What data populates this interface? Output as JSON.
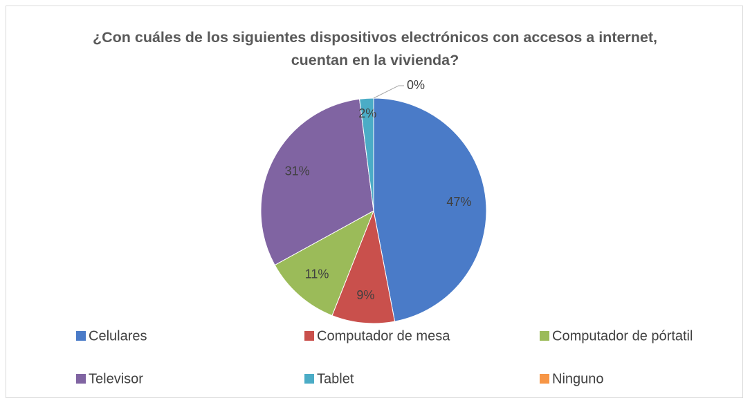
{
  "chart_data": {
    "type": "pie",
    "title": "¿Con cuáles de los siguientes dispositivos electrónicos con accesos a internet, cuentan en la vivienda?",
    "categories": [
      "Celulares",
      "Computador de mesa",
      "Computador de pórtatil",
      "Televisor",
      "Tablet",
      "Ninguno"
    ],
    "values": [
      47,
      9,
      11,
      31,
      2,
      0
    ],
    "value_labels": [
      "47%",
      "9%",
      "11%",
      "31%",
      "2%",
      "0%"
    ],
    "colors": [
      "#4a7bc8",
      "#c9504c",
      "#9bbb59",
      "#8064a2",
      "#4bacc6",
      "#f79646"
    ],
    "legend": "bottom"
  }
}
